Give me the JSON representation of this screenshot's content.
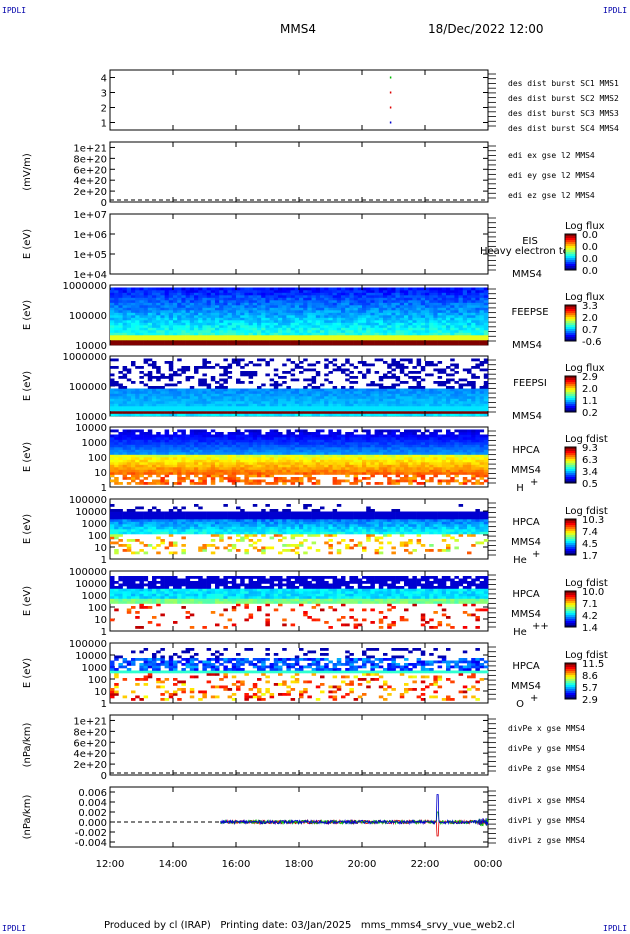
{
  "header": {
    "corner_tl": "IPDLI",
    "corner_tr": "IPDLI",
    "corner_bl": "IPDLI",
    "corner_br": "IPDLI",
    "title": "MMS4",
    "datetime": "18/Dec/2022 12:00"
  },
  "footer": {
    "text": "Produced by cl (IRAP)   Printing date: 03/Jan/2025   mms_mms4_srvy_vue_web2.cl"
  },
  "colors": {
    "blue": "#0000cc",
    "magenta": "#e000e0",
    "red": "#dd0000",
    "green": "#00bb00",
    "zero_line": "#000000"
  },
  "chart_data": [
    {
      "type": "scatter",
      "id": "burst",
      "ylabel": "",
      "ylim": [
        0.5,
        4.5
      ],
      "yticks": [
        "1",
        "2",
        "3",
        "4"
      ],
      "legend": [
        {
          "label": "des dist burst SC1 MMS1",
          "color": "#0000cc"
        },
        {
          "label": "des dist burst SC2 MMS2",
          "color": "#e000e0"
        },
        {
          "label": "des dist burst SC3 MMS3",
          "color": "#dd0000"
        },
        {
          "label": "des dist burst SC4 MMS4",
          "color": "#00bb00"
        }
      ],
      "series": [
        {
          "name": "des dist burst SC1 MMS1",
          "points": [
            [
              20.9,
              1
            ]
          ]
        },
        {
          "name": "des dist burst SC3 MMS3",
          "points": [
            [
              20.9,
              2
            ],
            [
              20.9,
              3
            ]
          ]
        },
        {
          "name": "des dist burst SC4 MMS4",
          "points": [
            [
              20.9,
              4
            ]
          ]
        }
      ]
    },
    {
      "type": "line",
      "id": "edi",
      "ylabel": "(mV/m)",
      "ylim": [
        0,
        1.1e+21
      ],
      "yticks": [
        "0",
        "2e+20",
        "4e+20",
        "6e+20",
        "8e+20",
        "1e+21"
      ],
      "legend": [
        {
          "label": "edi ex gse l2 MMS4",
          "color": "#dd0000"
        },
        {
          "label": "edi ey gse l2 MMS4",
          "color": "#00bb00"
        },
        {
          "label": "edi ez gse l2 MMS4",
          "color": "#0000cc"
        }
      ]
    },
    {
      "type": "heatmap",
      "id": "eis",
      "ylabel": "E (eV)",
      "yscale": "log",
      "ylim": [
        10000.0,
        10000000.0
      ],
      "yticks": [
        "1e+04",
        "1e+05",
        "1e+06",
        "1e+07"
      ],
      "instrument": [
        "EIS",
        "MMS4"
      ],
      "overlay_text": "Heavy electron to",
      "colorbar_title": "Log flux",
      "colorbar_ticks": [
        "0.0",
        "0.0",
        "0.0",
        "0.0"
      ]
    },
    {
      "type": "heatmap",
      "id": "feepse",
      "ylabel": "E (eV)",
      "yscale": "log",
      "ylim": [
        10000,
        1000000
      ],
      "yticks": [
        "10000",
        "100000",
        "1000000"
      ],
      "instrument": [
        "FEEPSE",
        "MMS4"
      ],
      "colorbar_title": "Log flux",
      "colorbar_ticks": [
        "3.3",
        "2.0",
        "0.7",
        "-0.6"
      ]
    },
    {
      "type": "heatmap",
      "id": "feepsi",
      "ylabel": "E (eV)",
      "yscale": "log",
      "ylim": [
        10000,
        1000000
      ],
      "yticks": [
        "10000",
        "100000",
        "1000000"
      ],
      "instrument": [
        "FEEPSI",
        "MMS4"
      ],
      "colorbar_title": "Log flux",
      "colorbar_ticks": [
        "2.9",
        "2.0",
        "1.1",
        "0.2"
      ]
    },
    {
      "type": "heatmap",
      "id": "hpca_h",
      "ylabel": "E (eV)",
      "yscale": "log",
      "ylim": [
        1,
        10000
      ],
      "yticks": [
        "1",
        "10",
        "100",
        "1000",
        "10000"
      ],
      "instrument": [
        "HPCA",
        "MMS4",
        "H",
        "+"
      ],
      "colorbar_title": "Log fdist",
      "colorbar_ticks": [
        "9.3",
        "6.3",
        "3.4",
        "0.5"
      ]
    },
    {
      "type": "heatmap",
      "id": "hpca_he",
      "ylabel": "E (eV)",
      "yscale": "log",
      "ylim": [
        1,
        100000
      ],
      "yticks": [
        "1",
        "10",
        "100",
        "1000",
        "10000",
        "100000"
      ],
      "instrument": [
        "HPCA",
        "MMS4",
        "He",
        "+"
      ],
      "colorbar_title": "Log fdist",
      "colorbar_ticks": [
        "10.3",
        "7.4",
        "4.5",
        "1.7"
      ]
    },
    {
      "type": "heatmap",
      "id": "hpca_hepp",
      "ylabel": "E (eV)",
      "yscale": "log",
      "ylim": [
        1,
        100000
      ],
      "yticks": [
        "1",
        "10",
        "100",
        "1000",
        "10000",
        "100000"
      ],
      "instrument": [
        "HPCA",
        "MMS4",
        "He",
        "++"
      ],
      "colorbar_title": "Log fdist",
      "colorbar_ticks": [
        "10.0",
        "7.1",
        "4.2",
        "1.4"
      ]
    },
    {
      "type": "heatmap",
      "id": "hpca_o",
      "ylabel": "E (eV)",
      "yscale": "log",
      "ylim": [
        1,
        100000
      ],
      "yticks": [
        "1",
        "10",
        "100",
        "1000",
        "10000",
        "100000"
      ],
      "instrument": [
        "HPCA",
        "MMS4",
        "O",
        "+"
      ],
      "colorbar_title": "Log fdist",
      "colorbar_ticks": [
        "11.5",
        "8.6",
        "5.7",
        "2.9"
      ]
    },
    {
      "type": "line",
      "id": "divpe",
      "ylabel": "(nPa/km)",
      "ylim": [
        0,
        1.1e+21
      ],
      "yticks": [
        "0",
        "2e+20",
        "4e+20",
        "6e+20",
        "8e+20",
        "1e+21"
      ],
      "legend": [
        {
          "label": "divPe x gse MMS4",
          "color": "#dd0000"
        },
        {
          "label": "divPe y gse MMS4",
          "color": "#00bb00"
        },
        {
          "label": "divPe z gse MMS4",
          "color": "#0000cc"
        }
      ]
    },
    {
      "type": "line",
      "id": "divpi",
      "ylabel": "(nPa/km)",
      "ylim": [
        -0.005,
        0.007
      ],
      "yticks": [
        "-0.004",
        "-0.002",
        "0.000",
        "0.002",
        "0.004",
        "0.006"
      ],
      "legend": [
        {
          "label": "divPi x gse MMS4",
          "color": "#dd0000"
        },
        {
          "label": "divPi y gse MMS4",
          "color": "#00bb00"
        },
        {
          "label": "divPi z gse MMS4",
          "color": "#0000cc"
        }
      ],
      "data_start_hour": 15.5,
      "spike_hour": 22.4
    }
  ],
  "xaxis": {
    "range_hours": [
      12,
      24
    ],
    "ticks": [
      "12:00",
      "14:00",
      "16:00",
      "18:00",
      "20:00",
      "22:00",
      "00:00"
    ]
  }
}
